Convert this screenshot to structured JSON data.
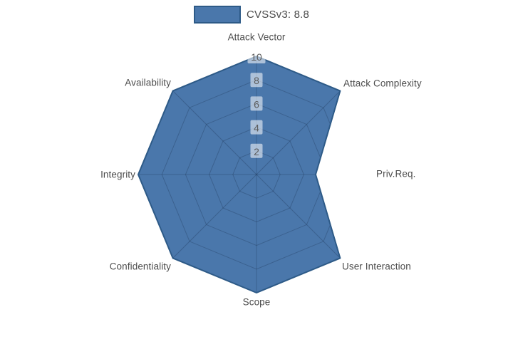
{
  "chart_data": {
    "type": "radar",
    "categories": [
      "Attack Vector",
      "Attack Complexity",
      "Priv.Req.",
      "User Interaction",
      "Scope",
      "Confidentiality",
      "Integrity",
      "Availability"
    ],
    "series": [
      {
        "name": "CVSSv3: 8.8",
        "values": [
          10,
          10,
          5,
          10,
          10,
          10,
          10,
          10
        ]
      }
    ],
    "radial_ticks": [
      2,
      4,
      6,
      8,
      10
    ],
    "range": [
      0,
      10
    ],
    "start_axis": "top",
    "direction": "clockwise",
    "grid": true,
    "legend_position": "top-center",
    "colors": {
      "fill": "#4a77ab",
      "stroke": "#2d5a87",
      "grid_line": "rgba(10,25,45,0.22)",
      "axis_label": "#4d4d4d",
      "tick_label": "#5c5c5c",
      "tick_background": "rgba(255,255,255,0.55)",
      "legend_text": "#4a4a4a"
    }
  }
}
